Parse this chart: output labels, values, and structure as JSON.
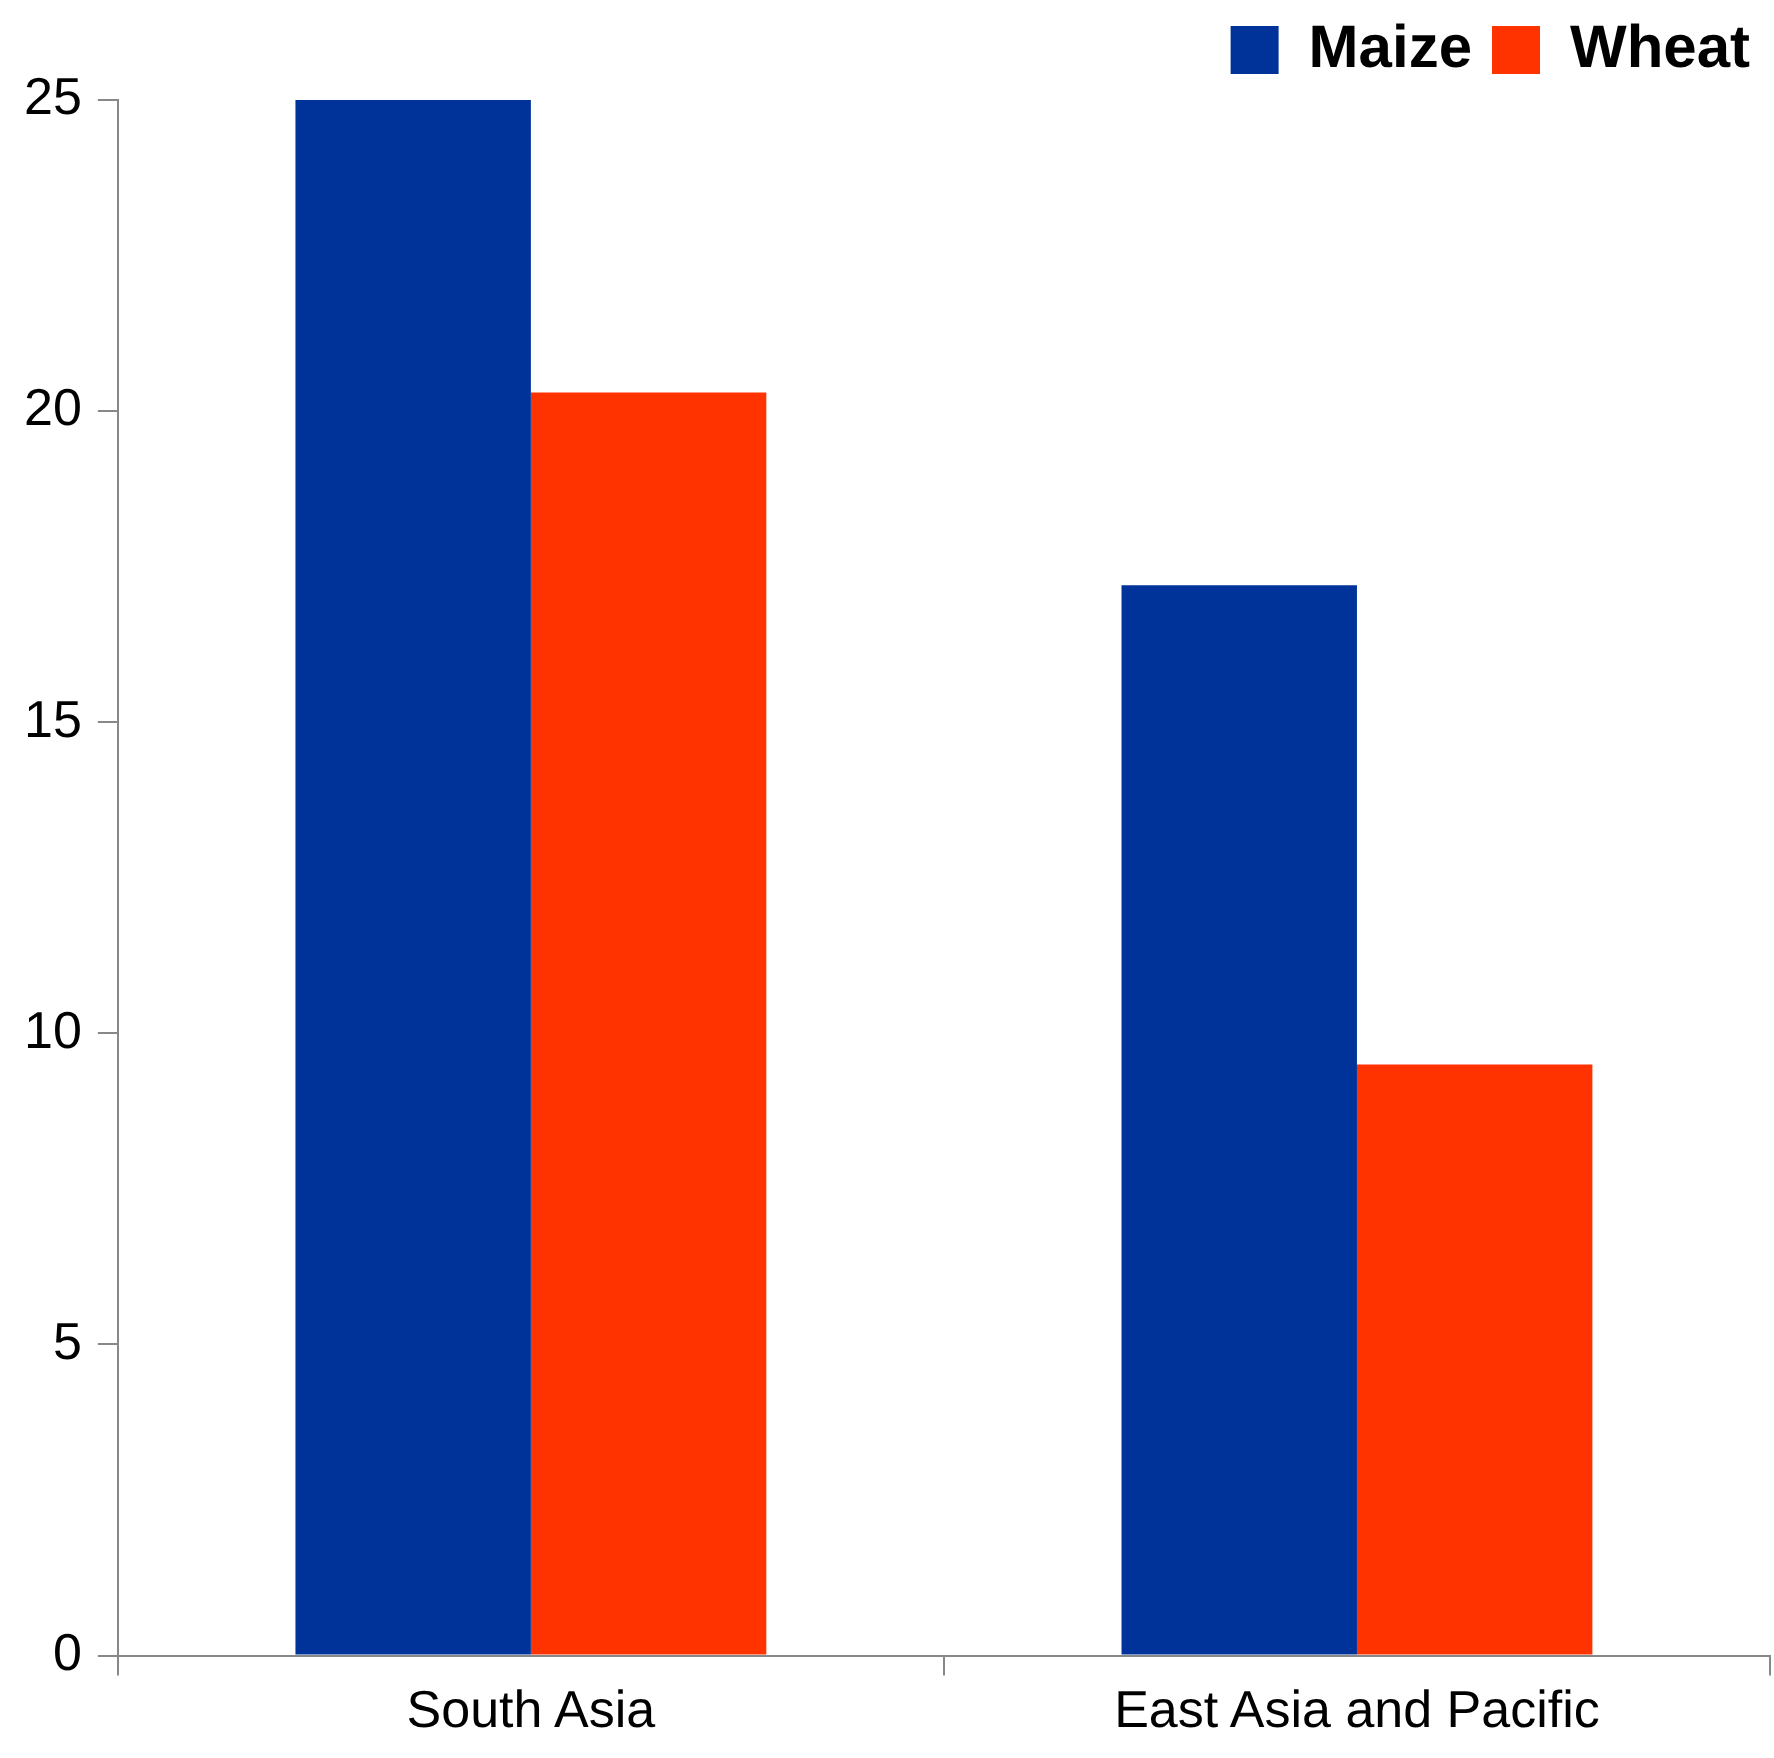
{
  "chart_data": {
    "type": "bar",
    "categories": [
      "South Asia",
      "East Asia and Pacific"
    ],
    "series": [
      {
        "name": "Maize",
        "color": "#003399",
        "values": [
          25,
          17.2
        ]
      },
      {
        "name": "Wheat",
        "color": "#ff3300",
        "values": [
          20.3,
          9.5
        ]
      }
    ],
    "ylim": [
      0,
      25
    ],
    "yticks": [
      0,
      5,
      10,
      15,
      20,
      25
    ],
    "legend": "top right"
  }
}
